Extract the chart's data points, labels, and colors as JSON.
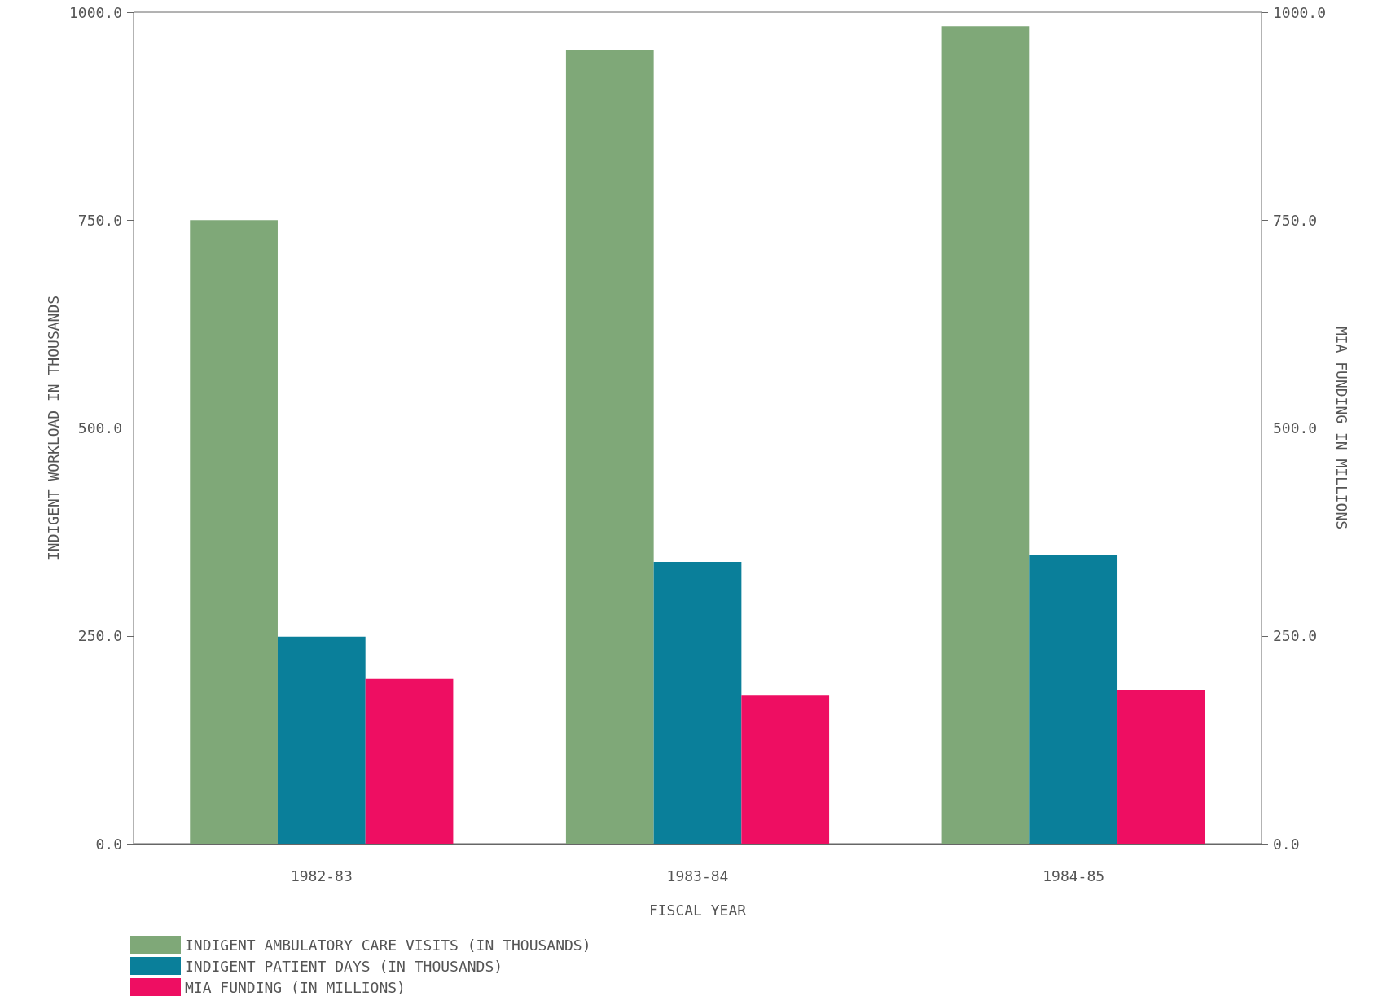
{
  "chart_data": {
    "type": "bar",
    "xlabel": "FISCAL YEAR",
    "ylabel": "INDIGENT WORKLOAD IN THOUSANDS",
    "y2label": "MIA FUNDING IN MILLIONS",
    "categories": [
      "1982-83",
      "1983-84",
      "1984-85"
    ],
    "series": [
      {
        "name": "INDIGENT AMBULATORY CARE VISITS (IN THOUSANDS)",
        "color": "#7fa878",
        "values": [
          750,
          954,
          983
        ]
      },
      {
        "name": "INDIGENT PATIENT DAYS (IN THOUSANDS)",
        "color": "#0a7f9a",
        "values": [
          249,
          339,
          347
        ]
      },
      {
        "name": "MIA FUNDING (IN MILLIONS)",
        "color": "#ee0e62",
        "values": [
          198,
          179,
          185
        ],
        "axis": "y2"
      }
    ],
    "ylim": [
      0,
      1000
    ],
    "yticks": [
      {
        "value": 0,
        "label": "0.0"
      },
      {
        "value": 250,
        "label": "250.0"
      },
      {
        "value": 500,
        "label": "500.0"
      },
      {
        "value": 750,
        "label": "750.0"
      },
      {
        "value": 1000,
        "label": "1000.0"
      }
    ],
    "y2lim": [
      0,
      1000
    ],
    "y2ticks": [
      {
        "value": 0,
        "label": "0.0"
      },
      {
        "value": 250,
        "label": "250.0"
      },
      {
        "value": 500,
        "label": "500.0"
      },
      {
        "value": 750,
        "label": "750.0"
      },
      {
        "value": 1000,
        "label": "1000.0"
      }
    ],
    "grid": false,
    "legend": "bottom left"
  }
}
